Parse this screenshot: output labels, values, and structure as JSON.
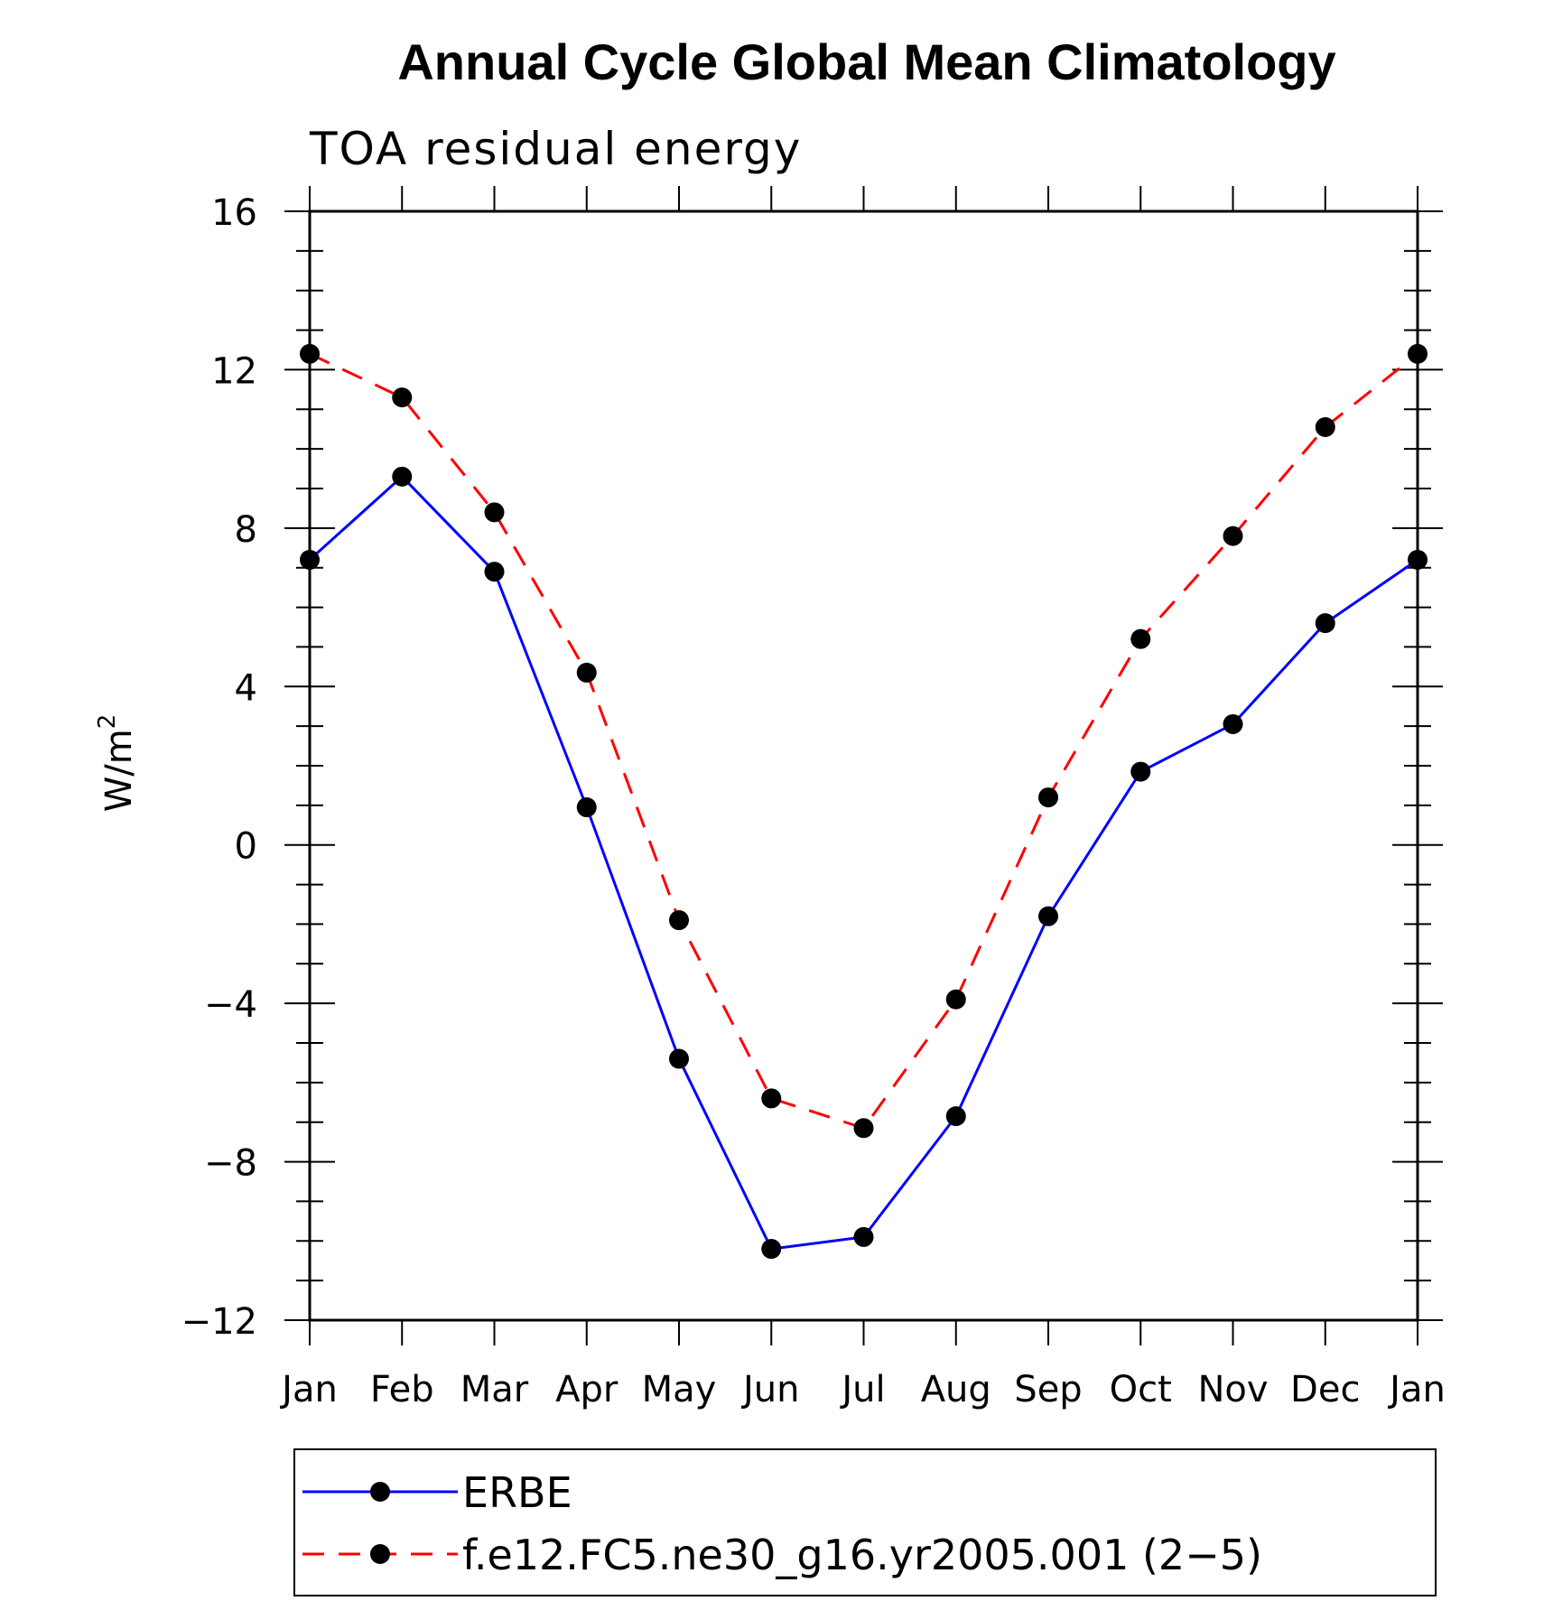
{
  "chart_data": {
    "type": "line",
    "title": "Annual Cycle Global Mean Climatology",
    "subtitle": "TOA residual energy",
    "xlabel": "",
    "ylabel": "W/m",
    "ylabel_sup": "2",
    "categories": [
      "Jan",
      "Feb",
      "Mar",
      "Apr",
      "May",
      "Jun",
      "Jul",
      "Aug",
      "Sep",
      "Oct",
      "Nov",
      "Dec",
      "Jan"
    ],
    "ylim": [
      -12,
      16
    ],
    "y_ticks": [
      16,
      12,
      8,
      4,
      0,
      -4,
      -8,
      -12
    ],
    "y_tick_labels": [
      "16",
      "12",
      "8",
      "4",
      "0",
      "−4",
      "−8",
      "−12"
    ],
    "grid": false,
    "legend_position": "bottom",
    "series": [
      {
        "name": "ERBE",
        "color": "#0000ff",
        "dash": "solid",
        "values": [
          7.2,
          9.3,
          6.9,
          0.95,
          -5.4,
          -10.2,
          -9.9,
          -6.85,
          -1.8,
          1.85,
          3.05,
          5.6,
          7.2
        ]
      },
      {
        "name": "f.e12.FC5.ne30_g16.yr2005.001 (2−5)",
        "color": "#ff0000",
        "dash": "dashed",
        "values": [
          12.4,
          11.3,
          8.4,
          4.35,
          -1.9,
          -6.4,
          -7.15,
          -3.9,
          1.2,
          5.2,
          7.8,
          10.55,
          12.4
        ]
      }
    ]
  }
}
